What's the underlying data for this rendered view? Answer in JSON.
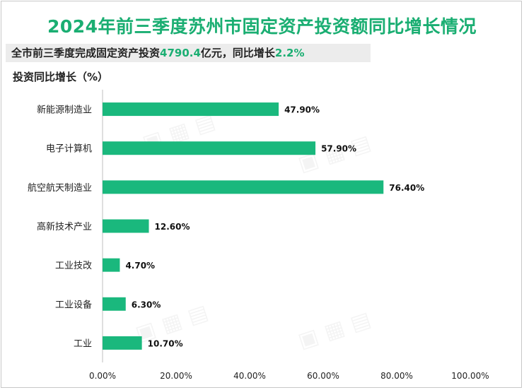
{
  "header": {
    "title": "2024年前三季度苏州市固定资产投资额同比增长情况",
    "subtitle_prefix": "全市前三季度完成固定资产投资",
    "subtitle_amount": "4790.4",
    "subtitle_mid": "亿元，同比增长",
    "subtitle_growth": "2.2%",
    "unit_label": "投资同比增长（%）"
  },
  "colors": {
    "accent": "#1aae72",
    "bar": "#1ab87d"
  },
  "chart_data": {
    "type": "bar",
    "orientation": "horizontal",
    "title": "2024年前三季度苏州市固定资产投资额同比增长情况",
    "ylabel": "投资同比增长（%）",
    "categories": [
      "新能源制造业",
      "电子计算机",
      "航空航天制造业",
      "高新技术产业",
      "工业技改",
      "工业设备",
      "工业"
    ],
    "values": [
      47.9,
      57.9,
      76.4,
      12.6,
      4.7,
      6.3,
      10.7
    ],
    "value_labels": [
      "47.90%",
      "57.90%",
      "76.40%",
      "12.60%",
      "4.70%",
      "6.30%",
      "10.70%"
    ],
    "xlim": [
      0,
      100
    ],
    "xticks": [
      0,
      20,
      40,
      60,
      80,
      100
    ],
    "xtick_labels": [
      "0.00%",
      "20.00%",
      "40.00%",
      "60.00%",
      "80.00%",
      "100.00%"
    ],
    "grid": false
  }
}
